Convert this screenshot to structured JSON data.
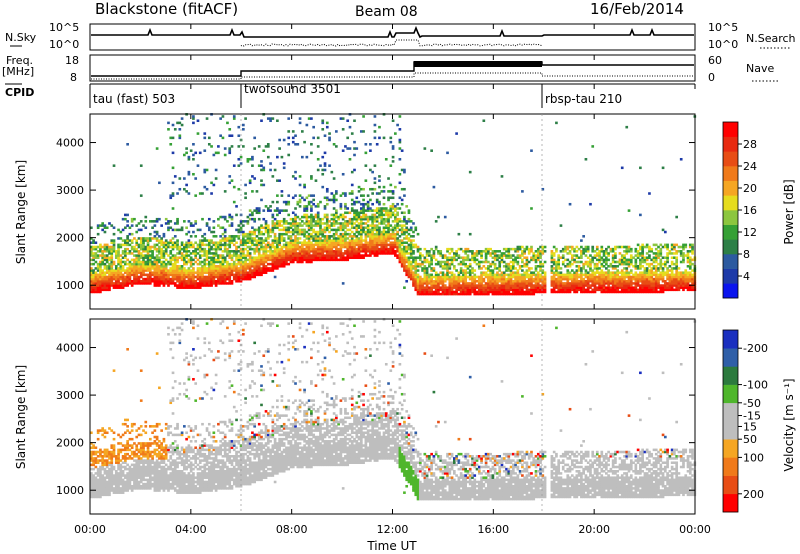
{
  "header": {
    "station": "Blackstone (fitACF)",
    "beam": "Beam 08",
    "date": "16/Feb/2014"
  },
  "left_labels": {
    "nsky": "N.Sky",
    "freq": "Freq.",
    "freq_unit": "[MHz]",
    "cpid": "CPID"
  },
  "right_labels": {
    "nsearch": "N.Search",
    "nave": "Nave"
  },
  "noise_panel": {
    "left_ticks": [
      "10^5",
      "10^0"
    ],
    "right_ticks": [
      "10^5",
      "10^0"
    ]
  },
  "freq_panel": {
    "left_ticks": [
      "18",
      "8"
    ],
    "right_ticks": [
      "60",
      "0"
    ]
  },
  "cpid_segments": [
    {
      "label": "tau (fast) 503",
      "start_hr": 0
    },
    {
      "label": "twofsound 3501",
      "start_hr": 6
    },
    {
      "label": "rbsp-tau 210",
      "start_hr": 18
    }
  ],
  "xaxis": {
    "title": "Time UT",
    "ticks": [
      "00:00",
      "04:00",
      "08:00",
      "12:00",
      "16:00",
      "20:00",
      "00:00"
    ],
    "range_hr": [
      0,
      24
    ]
  },
  "colors": {
    "power": [
      "#0a14ee",
      "#1d3aa8",
      "#2c5aa0",
      "#2d7f47",
      "#35a035",
      "#8cc63f",
      "#e6dc1e",
      "#f5a623",
      "#f07a1a",
      "#e84d15",
      "#e82a10",
      "#ff0000"
    ],
    "velocity": [
      "#1a2fbf",
      "#2f5fa8",
      "#2c7a3e",
      "#4fb62c",
      "#bebebe",
      "#bebebe",
      "#f5a623",
      "#f07a1a",
      "#e84d15",
      "#ff0000"
    ]
  },
  "chart_data": [
    {
      "type": "heatmap",
      "panel": "power",
      "ylabel": "Slant Range [km]",
      "yticks": [
        1000,
        2000,
        3000,
        4000
      ],
      "ylim": [
        500,
        4600
      ],
      "colorbar_label": "Power [dB]",
      "colorbar_ticks": [
        4,
        8,
        12,
        16,
        20,
        24,
        28
      ],
      "colorbar_range": [
        0,
        32
      ],
      "features": [
        {
          "desc": "strong echo band",
          "t": [
            0,
            2,
            4,
            6,
            8,
            10,
            12,
            13,
            14,
            18,
            24
          ],
          "range_km": [
            1050,
            1250,
            1150,
            1300,
            1700,
            1750,
            1900,
            1000,
            1000,
            1050,
            1100
          ]
        }
      ]
    },
    {
      "type": "heatmap",
      "panel": "velocity",
      "ylabel": "Slant Range [km]",
      "yticks": [
        1000,
        2000,
        3000,
        4000
      ],
      "ylim": [
        500,
        4600
      ],
      "colorbar_label": "Velocity [m s⁻¹]",
      "colorbar_ticks": [
        200,
        100,
        50,
        15,
        -15,
        -50,
        -100,
        -200
      ],
      "colorbar_range": [
        -250,
        250
      ]
    }
  ]
}
